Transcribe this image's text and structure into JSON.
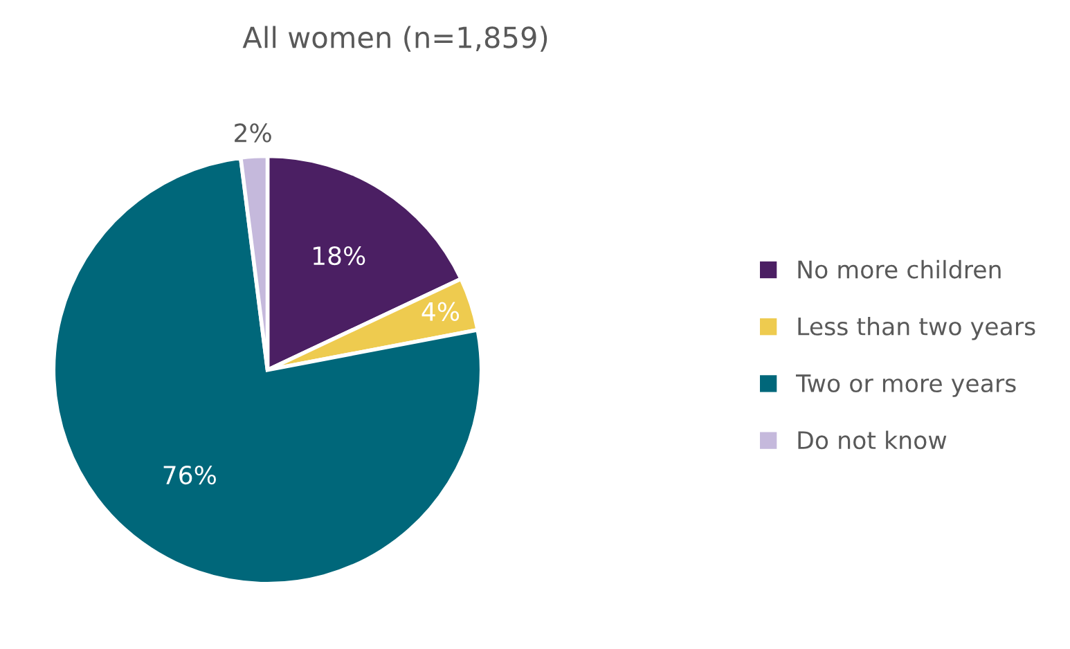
{
  "chart_data": {
    "type": "pie",
    "title": "All women (n=1,859)",
    "categories": [
      "No more children",
      "Less than two years",
      "Two or more years",
      "Do not know"
    ],
    "values": [
      18,
      4,
      76,
      2
    ],
    "colors": [
      "#4b1f63",
      "#eecb4f",
      "#00677a",
      "#c5b9dc"
    ],
    "value_labels": [
      "18%",
      "4%",
      "76%",
      "2%"
    ],
    "legend": "right"
  }
}
